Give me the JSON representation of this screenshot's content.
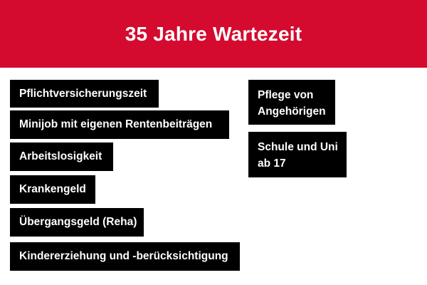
{
  "header": {
    "title": "35 Jahre Wartezeit",
    "background_color": "#d40a2f"
  },
  "left_items": [
    "Pflichtversicherungszeit",
    "Minijob mit eigenen Rentenbeiträgen",
    "Arbeitslosigkeit",
    "Krankengeld",
    "Übergangsgeld (Reha)",
    "Kindererziehung und -berücksichtigung"
  ],
  "right_items": [
    {
      "line1": "Pflege von",
      "line2": "Angehörigen"
    },
    {
      "line1": "Schule und Uni",
      "line2": "ab 17"
    }
  ]
}
